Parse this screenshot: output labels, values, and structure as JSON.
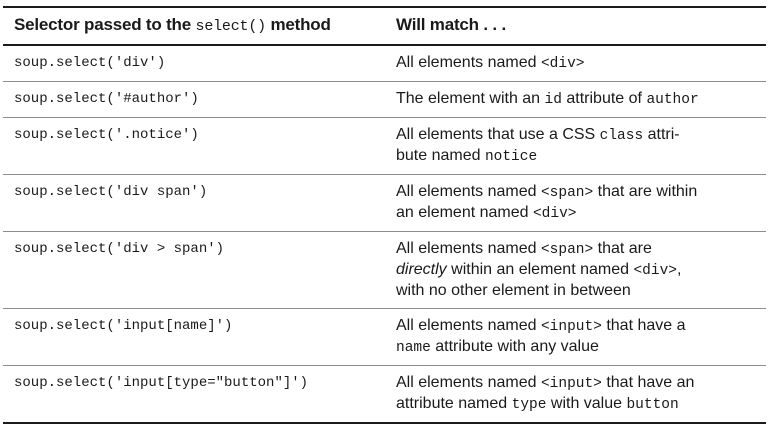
{
  "header": {
    "col1_prefix": "Selector passed to the ",
    "col1_code": "select()",
    "col1_suffix": " method",
    "col2": "Will match . . ."
  },
  "rows": [
    {
      "selector": "soup.select('div')",
      "desc": [
        {
          "t": "All elements named "
        },
        {
          "t": "<div>",
          "code": true
        }
      ]
    },
    {
      "selector": "soup.select('#author')",
      "desc": [
        {
          "t": "The element with an "
        },
        {
          "t": "id",
          "code": true
        },
        {
          "t": " attribute of "
        },
        {
          "t": "author",
          "code": true
        }
      ]
    },
    {
      "selector": "soup.select('.notice')",
      "desc": [
        {
          "t": "All elements that use a CSS "
        },
        {
          "t": "class",
          "code": true
        },
        {
          "t": " attri-"
        },
        {
          "br": true
        },
        {
          "t": "bute named "
        },
        {
          "t": "notice",
          "code": true
        }
      ]
    },
    {
      "selector": "soup.select('div span')",
      "desc": [
        {
          "t": "All elements named "
        },
        {
          "t": "<span>",
          "code": true
        },
        {
          "t": " that are within"
        },
        {
          "br": true
        },
        {
          "t": "an element named "
        },
        {
          "t": "<div>",
          "code": true
        }
      ]
    },
    {
      "selector": "soup.select('div > span')",
      "desc": [
        {
          "t": "All elements named "
        },
        {
          "t": "<span>",
          "code": true
        },
        {
          "t": " that are"
        },
        {
          "br": true
        },
        {
          "t": "directly",
          "em": true
        },
        {
          "t": " within an element named "
        },
        {
          "t": "<div>",
          "code": true
        },
        {
          "t": ","
        },
        {
          "br": true
        },
        {
          "t": "with no other element in between"
        }
      ]
    },
    {
      "selector": "soup.select('input[name]')",
      "desc": [
        {
          "t": "All elements named "
        },
        {
          "t": "<input>",
          "code": true
        },
        {
          "t": " that have a"
        },
        {
          "br": true
        },
        {
          "t": "name",
          "code": true
        },
        {
          "t": " attribute with any value"
        }
      ]
    },
    {
      "selector": "soup.select('input[type=\"button\"]')",
      "desc": [
        {
          "t": "All elements named "
        },
        {
          "t": "<input>",
          "code": true
        },
        {
          "t": " that have an"
        },
        {
          "br": true
        },
        {
          "t": "attribute named "
        },
        {
          "t": "type",
          "code": true
        },
        {
          "t": " with value "
        },
        {
          "t": "button",
          "code": true
        }
      ]
    }
  ]
}
